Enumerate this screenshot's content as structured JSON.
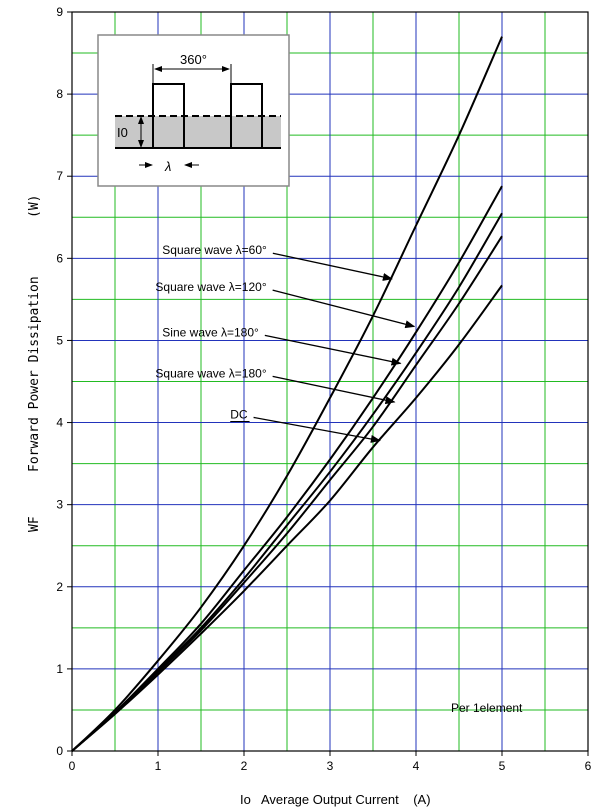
{
  "chart_data": {
    "type": "line",
    "xlabel": "Io   Average Output Current    (A)",
    "ylabel": "Forward Power Dissipation",
    "ylabel_symbol": "WF",
    "ylabel_unit": "(W)",
    "xlim": [
      0,
      6
    ],
    "ylim": [
      0,
      9
    ],
    "x_ticks": [
      0,
      1,
      2,
      3,
      4,
      5,
      6
    ],
    "y_ticks": [
      0,
      1,
      2,
      3,
      4,
      5,
      6,
      7,
      8,
      9
    ],
    "x_minor_step": 0.5,
    "y_minor_step": 0.5,
    "grid": true,
    "grid_colors": {
      "major": "#2233bb",
      "minor": "#22bb22"
    },
    "note": "Per 1element",
    "series": [
      {
        "name": "Square wave λ=60°",
        "x": [
          0,
          0.5,
          1,
          1.5,
          2,
          2.5,
          3,
          3.5,
          4,
          4.5,
          5
        ],
        "y": [
          0,
          0.5,
          1.1,
          1.75,
          2.5,
          3.35,
          4.3,
          5.3,
          6.4,
          7.5,
          8.7
        ]
      },
      {
        "name": "Square wave λ=120°",
        "x": [
          0,
          0.5,
          1,
          1.5,
          2,
          2.5,
          3,
          3.5,
          4,
          4.5,
          5
        ],
        "y": [
          0,
          0.47,
          1.0,
          1.55,
          2.2,
          2.85,
          3.55,
          4.3,
          5.1,
          5.95,
          6.88
        ]
      },
      {
        "name": "Sine wave λ=180°",
        "x": [
          0,
          0.5,
          1,
          1.5,
          2,
          2.5,
          3,
          3.5,
          4,
          4.5,
          5
        ],
        "y": [
          0,
          0.46,
          0.98,
          1.5,
          2.1,
          2.75,
          3.4,
          4.1,
          4.85,
          5.65,
          6.55
        ]
      },
      {
        "name": "Square wave λ=180°",
        "x": [
          0,
          0.5,
          1,
          1.5,
          2,
          2.5,
          3,
          3.5,
          4,
          4.5,
          5
        ],
        "y": [
          0,
          0.46,
          0.96,
          1.47,
          2.05,
          2.65,
          3.3,
          3.95,
          4.7,
          5.45,
          6.27
        ]
      },
      {
        "name": "DC",
        "x": [
          0,
          0.5,
          1,
          1.5,
          2,
          2.5,
          3,
          3.5,
          4,
          4.5,
          5
        ],
        "y": [
          0,
          0.45,
          0.93,
          1.43,
          1.95,
          2.5,
          3.05,
          3.7,
          4.3,
          4.95,
          5.67
        ]
      }
    ],
    "annotations": [
      {
        "text": "Square wave λ=60°",
        "label_x": 1.05,
        "label_y": 6.05,
        "arrow_to_x": 3.72,
        "arrow_to_y": 5.75
      },
      {
        "text": "Square wave λ=120°",
        "label_x": 0.97,
        "label_y": 5.6,
        "arrow_to_x": 3.98,
        "arrow_to_y": 5.17
      },
      {
        "text": "Sine wave λ=180°",
        "label_x": 1.05,
        "label_y": 5.05,
        "arrow_to_x": 3.82,
        "arrow_to_y": 4.72
      },
      {
        "text": "Square wave λ=180°",
        "label_x": 0.97,
        "label_y": 4.55,
        "arrow_to_x": 3.75,
        "arrow_to_y": 4.25
      },
      {
        "text": "DC",
        "label_x": 1.84,
        "label_y": 4.05,
        "arrow_to_x": 3.58,
        "arrow_to_y": 3.78
      }
    ],
    "inset": {
      "angle_label": "360°",
      "current_label": "I0",
      "width_label": "λ"
    }
  }
}
